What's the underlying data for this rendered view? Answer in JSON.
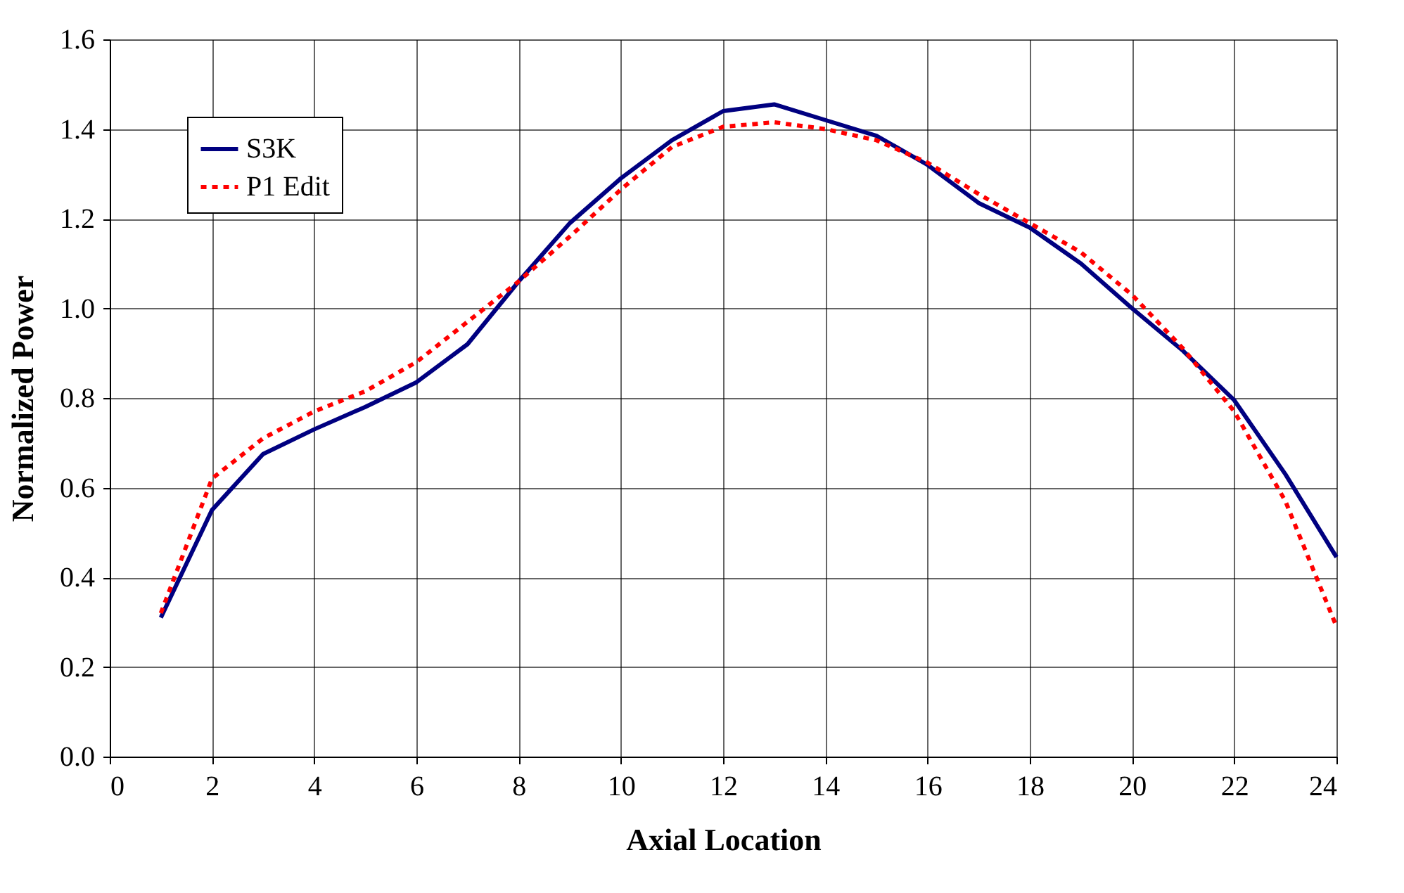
{
  "chart_data": {
    "type": "line",
    "xlabel": "Axial Location",
    "ylabel": "Normalized Power",
    "x": [
      1,
      2,
      3,
      4,
      5,
      6,
      7,
      8,
      9,
      10,
      11,
      12,
      13,
      14,
      15,
      16,
      17,
      18,
      19,
      20,
      21,
      22,
      23,
      24
    ],
    "series": [
      {
        "name": "S3K",
        "color": "#000080",
        "line_style": "solid",
        "values": [
          0.31,
          0.55,
          0.675,
          0.73,
          0.78,
          0.835,
          0.92,
          1.06,
          1.19,
          1.29,
          1.375,
          1.44,
          1.455,
          1.42,
          1.385,
          1.32,
          1.235,
          1.18,
          1.1,
          1.0,
          0.905,
          0.795,
          0.63,
          0.445
        ]
      },
      {
        "name": "P1 Edit",
        "color": "#ff0000",
        "line_style": "dotted",
        "values": [
          0.32,
          0.62,
          0.71,
          0.77,
          0.815,
          0.88,
          0.97,
          1.06,
          1.16,
          1.265,
          1.36,
          1.405,
          1.415,
          1.4,
          1.375,
          1.325,
          1.255,
          1.19,
          1.125,
          1.03,
          0.91,
          0.77,
          0.57,
          0.29
        ]
      }
    ],
    "xlim": [
      0,
      24
    ],
    "xticks": [
      0,
      2,
      4,
      6,
      8,
      10,
      12,
      14,
      16,
      18,
      20,
      22,
      24
    ],
    "ylim": [
      0,
      1.6
    ],
    "yticks": [
      {
        "value": 0,
        "label": "0.0"
      },
      {
        "value": 0.2,
        "label": "0.2"
      },
      {
        "value": 0.4,
        "label": "0.4"
      },
      {
        "value": 0.6,
        "label": "0.6"
      },
      {
        "value": 0.8,
        "label": "0.8"
      },
      {
        "value": 1.0,
        "label": "1.0"
      },
      {
        "value": 1.2,
        "label": "1.2"
      },
      {
        "value": 1.4,
        "label": "1.4"
      },
      {
        "value": 1.6,
        "label": "1.6"
      }
    ],
    "grid": true,
    "legend": "top left",
    "marker": "none"
  }
}
